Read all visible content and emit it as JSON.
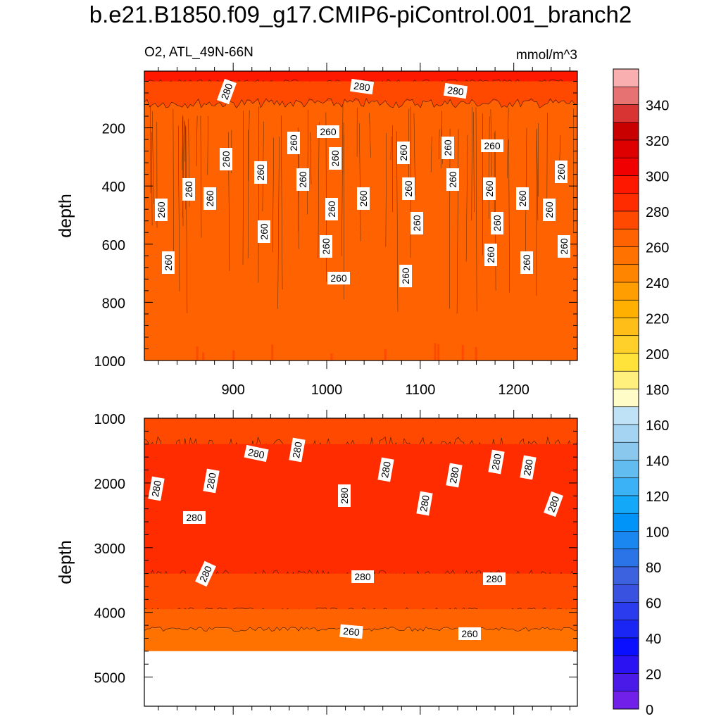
{
  "title": "b.e21.B1850.f09_g17.CMIP6-piControl.001_branch2",
  "subtitle_left": "O2, ATL_49N-66N",
  "subtitle_right": "mmol/m^3",
  "chart_data": [
    {
      "type": "heatmap",
      "panel": "upper",
      "variable": "O2",
      "region": "ATL_49N-66N",
      "units": "mmol/m^3",
      "ylabel": "depth",
      "xlabel": "",
      "x_ticks": [
        900,
        1000,
        1100,
        1200
      ],
      "xlim": [
        805,
        1268
      ],
      "y_ticks": [
        200,
        400,
        600,
        800,
        1000
      ],
      "ylim": [
        1000,
        5
      ],
      "y_reversed": true,
      "contour_labels": [
        "280",
        "280",
        "280",
        "260",
        "260",
        "260",
        "260",
        "260",
        "260",
        "260",
        "260",
        "260",
        "260",
        "260",
        "260",
        "260",
        "260",
        "260",
        "260",
        "260",
        "260",
        "260",
        "260",
        "260",
        "260",
        "260",
        "260",
        "260",
        "260",
        "260",
        "260",
        "260",
        "260"
      ],
      "bands": [
        {
          "depth_top": 5,
          "depth_bottom": 40,
          "value_range": [
            290,
            300
          ]
        },
        {
          "depth_top": 40,
          "depth_bottom": 110,
          "value_range": [
            270,
            280
          ]
        },
        {
          "depth_top": 110,
          "depth_bottom": 1000,
          "value_range": [
            260,
            270
          ]
        }
      ]
    },
    {
      "type": "heatmap",
      "panel": "lower",
      "variable": "O2",
      "region": "ATL_49N-66N",
      "units": "mmol/m^3",
      "ylabel": "depth",
      "xlabel": "",
      "y_ticks": [
        1000,
        2000,
        3000,
        4000,
        5000
      ],
      "ylim": [
        5450,
        1000
      ],
      "y_reversed": true,
      "data_bottom_depth": 4600,
      "contour_labels": [
        "280",
        "280",
        "280",
        "280",
        "280",
        "280",
        "280",
        "280",
        "280",
        "280",
        "280",
        "280",
        "280",
        "280",
        "280",
        "260",
        "260"
      ],
      "bands": [
        {
          "depth_top": 1000,
          "depth_bottom": 1400,
          "value_range": [
            270,
            280
          ]
        },
        {
          "depth_top": 1400,
          "depth_bottom": 3400,
          "value_range": [
            280,
            290
          ]
        },
        {
          "depth_top": 3400,
          "depth_bottom": 3950,
          "value_range": [
            270,
            280
          ]
        },
        {
          "depth_top": 3950,
          "depth_bottom": 4250,
          "value_range": [
            260,
            270
          ]
        },
        {
          "depth_top": 4250,
          "depth_bottom": 4600,
          "value_range": [
            250,
            260
          ]
        }
      ]
    }
  ],
  "colorbar": {
    "labels": [
      "340",
      "320",
      "300",
      "280",
      "260",
      "240",
      "220",
      "200",
      "180",
      "160",
      "140",
      "120",
      "100",
      "80",
      "60",
      "40",
      "20",
      "0"
    ],
    "levels_descending": [
      360,
      350,
      340,
      330,
      320,
      310,
      300,
      290,
      280,
      270,
      260,
      250,
      240,
      230,
      220,
      210,
      200,
      190,
      180,
      170,
      160,
      150,
      140,
      130,
      120,
      110,
      100,
      90,
      80,
      70,
      60,
      50,
      40,
      30,
      20,
      10,
      0,
      -10
    ],
    "colors_top_to_bottom": [
      "#f9aeb0",
      "#e77272",
      "#d93434",
      "#c80000",
      "#de0000",
      "#f00000",
      "#ff1800",
      "#ff2c00",
      "#ff4800",
      "#ff6200",
      "#ff7200",
      "#ff8500",
      "#ff9e00",
      "#ffb000",
      "#ffbe18",
      "#ffd02a",
      "#ffe23a",
      "#fff07e",
      "#fffcc8",
      "#bfe2f6",
      "#a4d4f2",
      "#8ac8ee",
      "#62bcf0",
      "#3cb2f6",
      "#14a8f8",
      "#0094f8",
      "#1a86f0",
      "#2a74e8",
      "#3c62e0",
      "#3a52e0",
      "#2a3cee",
      "#1a26f4",
      "#0a10ff",
      "#2a12f2",
      "#4a1ae8",
      "#7020e8"
    ]
  }
}
